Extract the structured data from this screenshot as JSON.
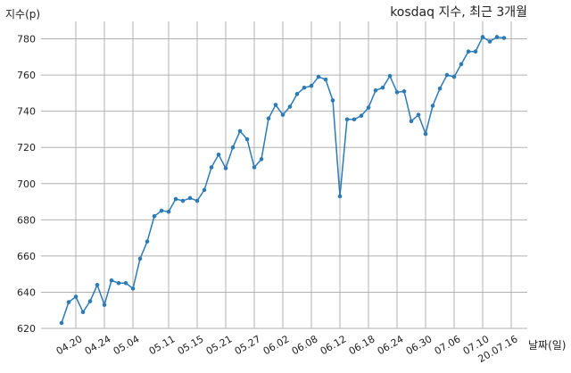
{
  "chart_data": {
    "type": "line",
    "title": "kosdaq 지수, 최근 3개월",
    "xlabel": "날짜(일)",
    "ylabel": "지수(p)",
    "ylim": [
      620,
      790
    ],
    "yticks": [
      620,
      640,
      660,
      680,
      700,
      720,
      740,
      760,
      780
    ],
    "grid": true,
    "line_color": "#2c7bb6",
    "x_tick_labels": [
      "04.20",
      "04.24",
      "05.04",
      "05.11",
      "05.15",
      "05.21",
      "05.27",
      "06.02",
      "06.08",
      "06.12",
      "06.18",
      "06.24",
      "06.30",
      "07.06",
      "07.10",
      "20.07.16"
    ],
    "x_tick_positions": [
      2,
      6,
      10,
      15,
      19,
      23,
      27,
      31,
      35,
      39,
      43,
      47,
      51,
      55,
      59,
      63
    ],
    "series": [
      {
        "values": [
          623,
          634.5,
          637.5,
          629,
          635,
          644,
          633,
          646.5,
          645,
          645,
          642,
          658.5,
          668,
          682,
          685,
          684.5,
          691.5,
          690.5,
          692,
          690.5,
          696.5,
          709,
          716,
          708.5,
          720,
          729,
          724.5,
          709,
          713.5,
          736,
          743.5,
          738,
          742.5,
          749.5,
          753,
          754,
          759,
          757.5,
          746,
          693,
          735.5,
          735.5,
          737.5,
          742,
          751.5,
          753,
          759.5,
          750.5,
          751,
          734.5,
          738,
          727.5,
          743,
          752.5,
          760,
          759,
          766,
          773,
          773,
          781,
          778.5,
          781,
          780.5
        ]
      }
    ]
  }
}
